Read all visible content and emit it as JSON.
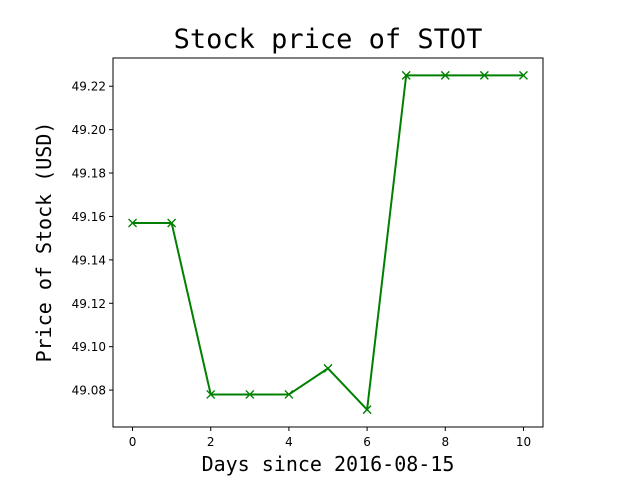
{
  "chart_data": {
    "type": "line",
    "title": "Stock price of STOT",
    "xlabel": "Days since 2016-08-15",
    "ylabel": "Price of Stock (USD)",
    "x": [
      0,
      1,
      2,
      3,
      4,
      5,
      6,
      7,
      8,
      9,
      10
    ],
    "series": [
      {
        "values": [
          49.157,
          49.157,
          49.078,
          49.078,
          49.078,
          49.09,
          49.071,
          49.225,
          49.225,
          49.225,
          49.225
        ],
        "color": "#008000",
        "marker": "x"
      }
    ],
    "xlim": [
      -0.5,
      10.5
    ],
    "ylim": [
      49.063,
      49.233
    ],
    "xticks": [
      0,
      2,
      4,
      6,
      8,
      10
    ],
    "xtick_labels": [
      "0",
      "2",
      "4",
      "6",
      "8",
      "10"
    ],
    "yticks": [
      49.08,
      49.1,
      49.12,
      49.14,
      49.16,
      49.18,
      49.2,
      49.22
    ],
    "ytick_labels": [
      "49.08",
      "49.10",
      "49.12",
      "49.14",
      "49.16",
      "49.18",
      "49.20",
      "49.22"
    ],
    "grid": false,
    "legend": "none"
  }
}
